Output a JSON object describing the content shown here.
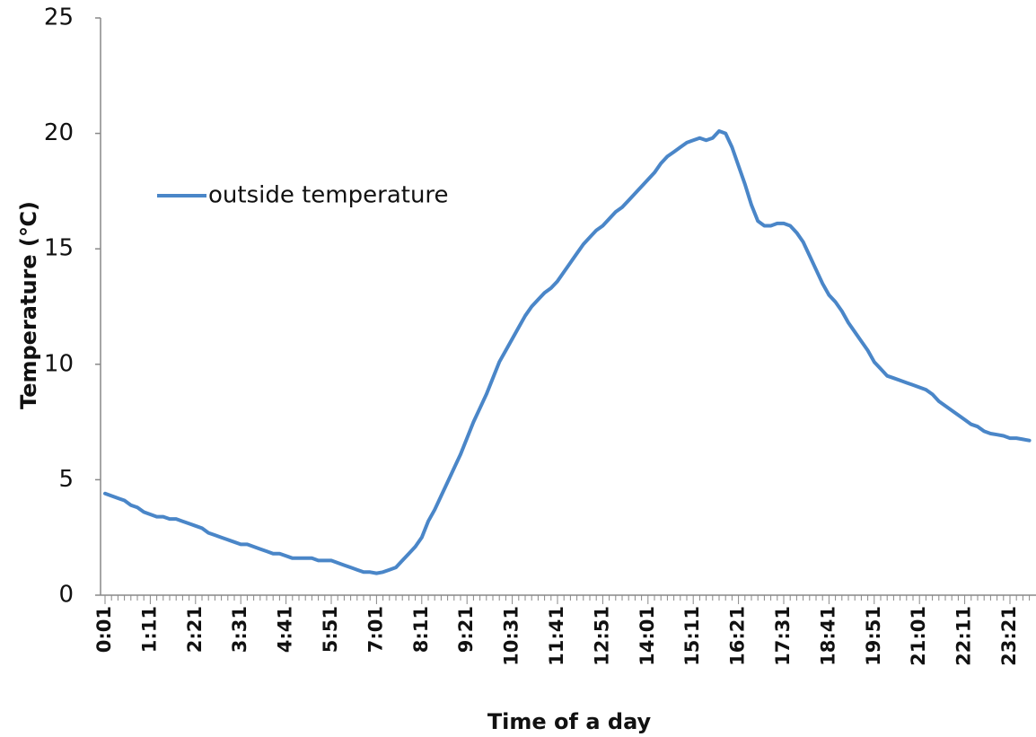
{
  "chart_data": {
    "type": "line",
    "x_label": "Time of a day",
    "y_label": "Temperature (℃)",
    "categories": [
      "0:01",
      null,
      null,
      null,
      null,
      null,
      null,
      "1:11",
      null,
      null,
      null,
      null,
      null,
      null,
      "2:21",
      null,
      null,
      null,
      null,
      null,
      null,
      "3:31",
      null,
      null,
      null,
      null,
      null,
      null,
      "4:41",
      null,
      null,
      null,
      null,
      null,
      null,
      "5:51",
      null,
      null,
      null,
      null,
      null,
      null,
      "7:01",
      null,
      null,
      null,
      null,
      null,
      null,
      "8:11",
      null,
      null,
      null,
      null,
      null,
      null,
      "9:21",
      null,
      null,
      null,
      null,
      null,
      null,
      "10:31",
      null,
      null,
      null,
      null,
      null,
      null,
      "11:41",
      null,
      null,
      null,
      null,
      null,
      null,
      "12:51",
      null,
      null,
      null,
      null,
      null,
      null,
      "14:01",
      null,
      null,
      null,
      null,
      null,
      null,
      "15:11",
      null,
      null,
      null,
      null,
      null,
      null,
      "16:21",
      null,
      null,
      null,
      null,
      null,
      null,
      "17:31",
      null,
      null,
      null,
      null,
      null,
      null,
      "18:41",
      null,
      null,
      null,
      null,
      null,
      null,
      "19:51",
      null,
      null,
      null,
      null,
      null,
      null,
      "21:01",
      null,
      null,
      null,
      null,
      null,
      null,
      "22:11",
      null,
      null,
      null,
      null,
      null,
      null,
      "23:21",
      null,
      null,
      null
    ],
    "series": [
      {
        "name": "outside temperature",
        "color": "#4a86c8",
        "values": [
          4.4,
          4.3,
          4.2,
          4.1,
          3.9,
          3.8,
          3.6,
          3.5,
          3.4,
          3.4,
          3.3,
          3.3,
          3.2,
          3.1,
          3.0,
          2.9,
          2.7,
          2.6,
          2.5,
          2.4,
          2.3,
          2.2,
          2.2,
          2.1,
          2.0,
          1.9,
          1.8,
          1.8,
          1.7,
          1.6,
          1.6,
          1.6,
          1.6,
          1.5,
          1.5,
          1.5,
          1.4,
          1.3,
          1.2,
          1.1,
          1.0,
          1.0,
          0.95,
          1.0,
          1.1,
          1.2,
          1.5,
          1.8,
          2.1,
          2.5,
          3.2,
          3.7,
          4.3,
          4.9,
          5.5,
          6.1,
          6.8,
          7.5,
          8.1,
          8.7,
          9.4,
          10.1,
          10.6,
          11.1,
          11.6,
          12.1,
          12.5,
          12.8,
          13.1,
          13.3,
          13.6,
          14.0,
          14.4,
          14.8,
          15.2,
          15.5,
          15.8,
          16.0,
          16.3,
          16.6,
          16.8,
          17.1,
          17.4,
          17.7,
          18.0,
          18.3,
          18.7,
          19.0,
          19.2,
          19.4,
          19.6,
          19.7,
          19.8,
          19.7,
          19.8,
          20.1,
          20.0,
          19.4,
          18.6,
          17.8,
          16.9,
          16.2,
          16.0,
          16.0,
          16.1,
          16.1,
          16.0,
          15.7,
          15.3,
          14.7,
          14.1,
          13.5,
          13.0,
          12.7,
          12.3,
          11.8,
          11.4,
          11.0,
          10.6,
          10.1,
          9.8,
          9.5,
          9.4,
          9.3,
          9.2,
          9.1,
          9.0,
          8.9,
          8.7,
          8.4,
          8.2,
          8.0,
          7.8,
          7.6,
          7.4,
          7.3,
          7.1,
          7.0,
          6.95,
          6.9,
          6.8,
          6.8,
          6.75,
          6.7
        ]
      }
    ],
    "ylim": [
      0,
      25
    ],
    "yticks": [
      0,
      5,
      10,
      15,
      20,
      25
    ],
    "grid": false,
    "legend": "upper-left"
  }
}
